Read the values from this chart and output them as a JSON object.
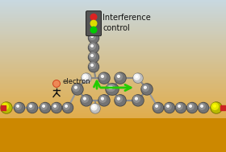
{
  "bg_color_top": "#c8d8e0",
  "bg_color_bottom": "#e8a020",
  "ground_color": "#cc8800",
  "title": "Interference\ncontrol",
  "title_fontsize": 7.0,
  "electron_label": "electron",
  "electron_fontsize": 6.0,
  "atom_gray": "#909090",
  "atom_white": "#f0f0f0",
  "atom_yellow": "#e8e800",
  "bond_color": "#aaaaaa",
  "traffic_box": "#555555",
  "traffic_red": "#dd2222",
  "traffic_yellow": "#dddd00",
  "traffic_green": "#00cc00",
  "arrow_color": "#22cc00",
  "stick_figure_color": "#111111"
}
